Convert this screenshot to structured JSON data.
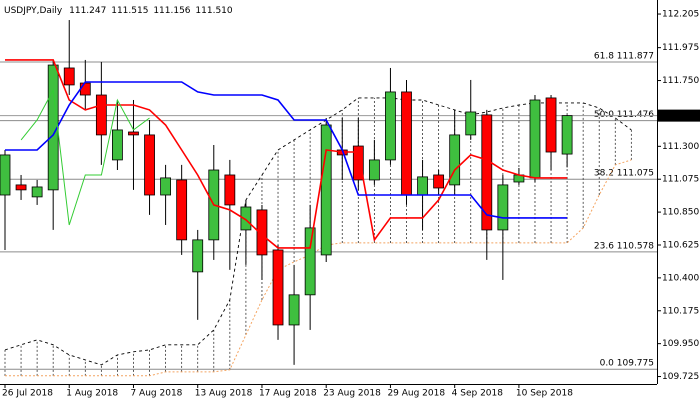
{
  "chart_data": {
    "type": "candlestick",
    "title": "USDJPY,Daily",
    "ohlc_labels": [
      "111.247",
      "111.515",
      "111.156",
      "111.510"
    ],
    "categories": [
      "26 Jul 2018",
      null,
      null,
      null,
      "1 Aug 2018",
      null,
      null,
      null,
      "7 Aug 2018",
      null,
      null,
      null,
      "13 Aug 2018",
      null,
      null,
      null,
      "17 Aug 2018",
      null,
      null,
      null,
      "23 Aug 2018",
      null,
      null,
      null,
      "29 Aug 2018",
      null,
      null,
      null,
      "4 Sep 2018",
      null,
      null,
      null,
      "10 Sep 2018",
      null,
      null,
      null,
      null,
      null,
      null,
      null
    ],
    "open": [
      110.967,
      111.036,
      110.954,
      111.002,
      111.836,
      111.733,
      111.651,
      111.207,
      111.398,
      111.378,
      110.967,
      111.07,
      110.441,
      110.66,
      111.104,
      110.728,
      110.865,
      110.591,
      110.078,
      110.284,
      110.557,
      111.275,
      111.302,
      111.07,
      111.207,
      111.672,
      110.967,
      111.104,
      111.036,
      111.378,
      111.515,
      110.728,
      111.056,
      111.084,
      111.631,
      111.247,
      null,
      null,
      null,
      null
    ],
    "high": [
      111.275,
      111.104,
      111.07,
      111.891,
      112.164,
      111.891,
      111.877,
      111.617,
      111.617,
      111.48,
      111.173,
      111.173,
      110.728,
      111.309,
      111.207,
      110.933,
      110.899,
      110.625,
      110.489,
      110.899,
      111.494,
      111.494,
      111.494,
      111.344,
      111.836,
      111.754,
      111.207,
      111.138,
      111.549,
      111.754,
      111.549,
      111.104,
      111.152,
      111.651,
      111.651,
      111.515,
      null,
      null,
      null,
      null
    ],
    "low": [
      110.591,
      110.933,
      110.899,
      110.728,
      111.651,
      111.549,
      111.173,
      111.138,
      111.002,
      110.831,
      110.762,
      110.557,
      110.113,
      110.523,
      110.455,
      110.489,
      110.386,
      109.976,
      109.805,
      110.044,
      110.509,
      111.07,
      111.002,
      111.036,
      111.173,
      110.899,
      110.728,
      110.967,
      110.967,
      111.344,
      110.523,
      110.386,
      111.036,
      111.056,
      111.138,
      111.156,
      null,
      null,
      null,
      null
    ],
    "close": [
      111.241,
      111.002,
      111.022,
      111.856,
      111.72,
      111.651,
      111.378,
      111.412,
      111.378,
      110.967,
      111.084,
      110.66,
      110.66,
      111.138,
      110.899,
      110.885,
      110.557,
      110.078,
      110.284,
      110.742,
      111.446,
      111.241,
      111.07,
      111.207,
      111.672,
      110.967,
      111.091,
      111.015,
      111.378,
      111.535,
      110.728,
      111.036,
      111.104,
      111.617,
      111.261,
      111.51,
      null,
      null,
      null,
      null
    ],
    "up_color": "#3fbf3f",
    "down_color": "#ff0000",
    "overlays": [
      {
        "color": "#ff0000",
        "values": [
          111.891,
          111.891,
          111.891,
          111.891,
          111.617,
          111.549,
          111.583,
          111.583,
          111.583,
          111.549,
          111.446,
          111.275,
          111.104,
          110.899,
          110.865,
          110.797,
          110.694,
          110.605,
          110.605,
          110.605,
          111.275,
          111.261,
          111.261,
          110.66,
          110.81,
          110.81,
          110.81,
          110.933,
          111.138,
          111.241,
          111.207,
          111.138,
          111.104,
          111.084,
          111.084,
          111.084,
          null,
          null,
          null,
          null
        ]
      },
      {
        "color": "#0000ff",
        "values": [
          111.275,
          111.275,
          111.275,
          111.378,
          111.583,
          111.74,
          111.74,
          111.74,
          111.74,
          111.74,
          111.74,
          111.74,
          111.672,
          111.651,
          111.651,
          111.651,
          111.651,
          111.617,
          111.48,
          111.48,
          111.48,
          111.275,
          110.967,
          110.967,
          110.967,
          110.967,
          110.967,
          110.967,
          110.967,
          110.967,
          110.831,
          110.81,
          110.81,
          110.81,
          110.81,
          110.81,
          null,
          null,
          null,
          null
        ]
      },
      {
        "color": "#33cc33",
        "values": [
          null,
          111.344,
          111.48,
          111.685,
          110.762,
          111.104,
          111.104,
          111.617,
          111.412,
          111.494,
          null,
          null,
          null,
          null,
          null,
          null,
          null,
          null,
          null,
          null,
          null,
          null,
          null,
          null,
          null,
          null,
          null,
          null,
          null,
          null,
          null,
          null,
          null,
          null,
          null,
          null,
          null,
          null,
          null,
          null
        ]
      }
    ],
    "cloud": {
      "span_a": {
        "color": "#f4a460",
        "values": [
          109.73,
          109.73,
          109.73,
          109.73,
          109.73,
          109.73,
          109.73,
          109.73,
          109.73,
          109.73,
          109.757,
          109.757,
          109.757,
          109.757,
          109.771,
          110.01,
          110.249,
          110.455,
          110.509,
          110.557,
          110.625,
          110.639,
          110.639,
          110.639,
          110.639,
          110.639,
          110.639,
          110.639,
          110.639,
          110.639,
          110.639,
          110.639,
          110.639,
          110.639,
          110.639,
          110.639,
          110.742,
          110.967,
          111.173,
          111.207
        ]
      },
      "span_b": {
        "color": "#000000",
        "values": [
          109.907,
          109.942,
          109.976,
          109.942,
          109.873,
          109.839,
          109.805,
          109.873,
          109.894,
          109.907,
          109.942,
          109.942,
          109.942,
          110.044,
          110.249,
          110.933,
          111.104,
          111.275,
          111.344,
          111.412,
          111.48,
          111.549,
          111.631,
          111.631,
          111.631,
          111.617,
          111.617,
          111.583,
          111.549,
          111.515,
          111.535,
          111.562,
          111.583,
          111.597,
          111.597,
          111.597,
          111.597,
          111.562,
          111.494,
          111.412
        ]
      }
    },
    "fib_levels": [
      {
        "value": 111.877,
        "label": "61.8 111.877"
      },
      {
        "value": 111.476,
        "label": "50.0 111.476"
      },
      {
        "value": 111.075,
        "label": "38.2 111.075"
      },
      {
        "value": 110.578,
        "label": "23.6 110.578"
      },
      {
        "value": 109.775,
        "label": "0.0 109.775"
      }
    ],
    "last_price": {
      "value": 111.51,
      "label": "111.510"
    },
    "ylim": [
      109.674,
      112.301
    ],
    "yticks": [
      112.205,
      111.975,
      {
        "value": 111.75,
        "label": "111.750"
      },
      {
        "value": 111.3,
        "label": "111.300"
      },
      111.075,
      {
        "value": 110.85,
        "label": "110.850"
      },
      110.625,
      {
        "value": 110.4,
        "label": "110.400"
      },
      110.175,
      {
        "value": 109.95,
        "label": "109.950"
      },
      109.725
    ]
  }
}
